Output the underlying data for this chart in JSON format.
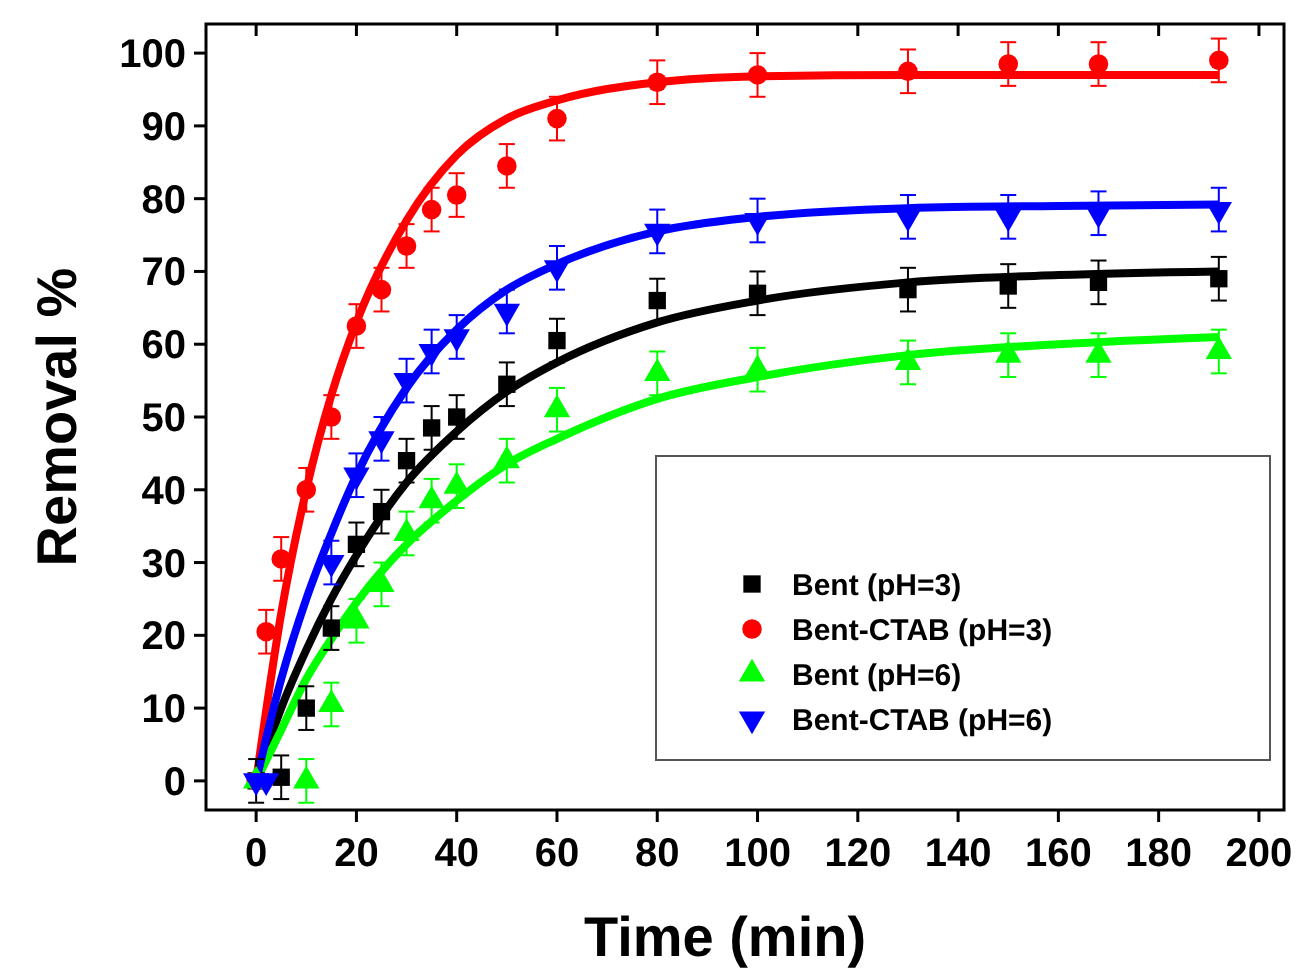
{
  "chart_data": {
    "type": "scatter",
    "xlabel": "Time (min)",
    "ylabel": "Removal %",
    "xlim": [
      -10,
      205
    ],
    "ylim": [
      -4,
      104
    ],
    "xticks": [
      0,
      20,
      40,
      60,
      80,
      100,
      120,
      140,
      160,
      180,
      200
    ],
    "yticks": [
      0,
      10,
      20,
      30,
      40,
      50,
      60,
      70,
      80,
      90,
      100
    ],
    "legend": "bottom right",
    "grid": false,
    "series": [
      {
        "name": "Bent (pH=3)",
        "color": "#000000",
        "marker": "square",
        "x": [
          0,
          5,
          10,
          15,
          20,
          25,
          30,
          35,
          40,
          50,
          60,
          80,
          100,
          130,
          150,
          168,
          192
        ],
        "values": [
          0,
          0.5,
          10,
          21,
          32.5,
          37,
          44,
          48.5,
          50,
          54.5,
          60.5,
          66,
          67,
          67.5,
          68,
          68.5,
          69
        ],
        "errors": [
          3,
          3,
          3,
          3,
          3,
          3,
          3,
          3,
          3,
          3,
          3,
          3,
          3,
          3,
          3,
          3,
          3
        ]
      },
      {
        "name": "Bent-CTAB (pH=3)",
        "color": "#ff0000",
        "marker": "circle",
        "x": [
          0,
          2,
          5,
          10,
          15,
          20,
          25,
          30,
          35,
          40,
          50,
          60,
          80,
          100,
          130,
          150,
          168,
          192
        ],
        "values": [
          0,
          20.5,
          30.5,
          40,
          50,
          62.5,
          67.5,
          73.5,
          78.5,
          80.5,
          84.5,
          91,
          96,
          97,
          97.5,
          98.5,
          98.5,
          99
        ],
        "errors": [
          null,
          3,
          3,
          3,
          3,
          3,
          3,
          3,
          3,
          3,
          3,
          3,
          3,
          3,
          3,
          3,
          3,
          3
        ]
      },
      {
        "name": "Bent (pH=6)",
        "color": "#00ff00",
        "marker": "triangle",
        "x": [
          0,
          10,
          15,
          20,
          25,
          30,
          35,
          40,
          50,
          60,
          80,
          100,
          130,
          150,
          168,
          192
        ],
        "values": [
          0,
          0,
          10.5,
          22,
          27,
          34,
          38.5,
          40.5,
          44,
          51,
          56,
          56.5,
          57.5,
          58.5,
          58.5,
          59
        ],
        "errors": [
          null,
          3,
          3,
          3,
          3,
          3,
          3,
          3,
          3,
          3,
          3,
          3,
          3,
          3,
          3,
          3
        ]
      },
      {
        "name": "Bent-CTAB (pH=6)",
        "color": "#0000ff",
        "marker": "triangle-down",
        "x": [
          0,
          2,
          15,
          20,
          25,
          30,
          35,
          40,
          50,
          60,
          80,
          100,
          130,
          150,
          168,
          192
        ],
        "values": [
          0,
          0,
          30,
          42,
          47,
          55,
          59,
          61,
          64.5,
          70.5,
          75.5,
          77,
          77.5,
          77.5,
          78,
          78.5
        ],
        "errors": [
          null,
          null,
          3,
          3,
          3,
          3,
          3,
          3,
          3,
          3,
          3,
          3,
          3,
          3,
          3,
          3
        ]
      },
      {
        "type": "line",
        "color": "#000000",
        "x": [
          0,
          5,
          10,
          15,
          20,
          30,
          40,
          50,
          60,
          80,
          100,
          130,
          160,
          192
        ],
        "values": [
          0,
          10,
          18,
          25,
          31,
          41,
          48,
          53.5,
          57.5,
          63,
          66,
          68.5,
          69.5,
          70
        ]
      },
      {
        "type": "line",
        "color": "#ff0000",
        "x": [
          0,
          5,
          10,
          15,
          20,
          30,
          40,
          50,
          60,
          80,
          100,
          130,
          160,
          192
        ],
        "values": [
          0,
          23,
          40,
          53,
          63,
          77,
          86,
          91,
          93.5,
          96,
          96.8,
          97,
          97,
          97
        ]
      },
      {
        "type": "line",
        "color": "#00ff00",
        "x": [
          0,
          5,
          10,
          15,
          20,
          30,
          40,
          50,
          60,
          80,
          100,
          130,
          160,
          192
        ],
        "values": [
          0,
          7,
          14,
          19.5,
          24.5,
          32.5,
          38.5,
          43.5,
          47,
          52.5,
          55.5,
          58.5,
          60,
          61
        ]
      },
      {
        "type": "line",
        "color": "#0000ff",
        "x": [
          0,
          5,
          10,
          15,
          20,
          30,
          40,
          50,
          60,
          80,
          100,
          130,
          160,
          192
        ],
        "values": [
          0,
          14,
          25,
          34,
          42,
          54,
          62,
          67.5,
          71,
          75.5,
          77.5,
          78.7,
          79,
          79.2
        ]
      }
    ]
  }
}
